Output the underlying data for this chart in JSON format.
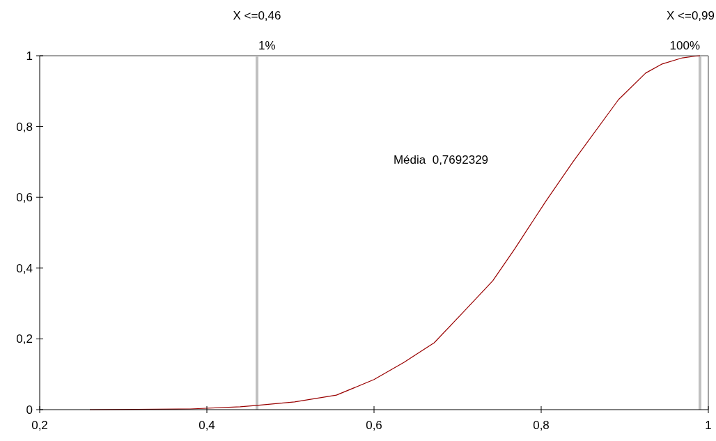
{
  "chart_data": {
    "type": "line",
    "x": [
      0.26,
      0.38,
      0.44,
      0.46,
      0.505,
      0.555,
      0.6,
      0.636,
      0.672,
      0.703,
      0.742,
      0.768,
      0.805,
      0.838,
      0.8925,
      0.925,
      0.944,
      0.969,
      0.985,
      0.99
    ],
    "series": [
      {
        "color": "#990000",
        "values": [
          0,
          0.002,
          0.008,
          0.012,
          0.022,
          0.041,
          0.085,
          0.134,
          0.189,
          0.266,
          0.364,
          0.453,
          0.587,
          0.7,
          0.876,
          0.951,
          0.976,
          0.994,
          0.999,
          1
        ]
      }
    ],
    "xlim": [
      0.2,
      1
    ],
    "ylim": [
      0,
      1
    ],
    "xticks": [
      {
        "value": 0.2,
        "label": "0,2"
      },
      {
        "value": 0.4,
        "label": "0,4"
      },
      {
        "value": 0.6,
        "label": "0,6"
      },
      {
        "value": 0.8,
        "label": "0,8"
      },
      1
    ],
    "yticks": [
      0,
      {
        "value": 0.2,
        "label": "0,2"
      },
      {
        "value": 0.4,
        "label": "0,4"
      },
      {
        "value": 0.6,
        "label": "0,6"
      },
      {
        "value": 0.8,
        "label": "0,8"
      },
      1
    ],
    "ref_lines": [
      {
        "axis": "x",
        "value": 0.46,
        "color": "#c0c0c0"
      },
      {
        "axis": "x",
        "value": 0.99,
        "color": "#c0c0c0"
      }
    ],
    "annotations": [
      "X <=0,46",
      {
        "text": "1%",
        "x": 0.46,
        "y": 1
      },
      "X <=0,99",
      {
        "text": "100%",
        "x": 0.99,
        "y": 1
      },
      "Média  0,7692329"
    ],
    "grid": false,
    "legend": false,
    "marker": "none",
    "line_style": "solid"
  }
}
